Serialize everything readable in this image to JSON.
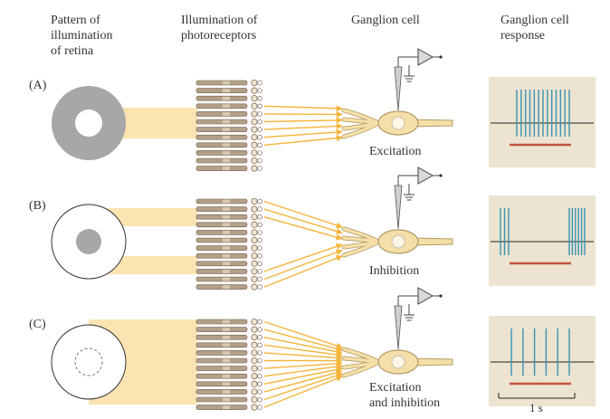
{
  "headers": {
    "pattern": "Pattern of\nillumination\nof retina",
    "illumination": "Illumination of\nphotoreceptors",
    "ganglion": "Ganglion cell",
    "response": "Ganglion cell\nresponse"
  },
  "panels": [
    {
      "label": "(A)",
      "caption": "Excitation",
      "illuminated_region": "center",
      "spikes_during": 13,
      "spikes_outside_before": 0,
      "spikes_outside_after": 0
    },
    {
      "label": "(B)",
      "caption": "Inhibition",
      "illuminated_region": "surround",
      "spikes_during": 0,
      "spikes_outside_before": 3,
      "spikes_outside_after": 6
    },
    {
      "label": "(C)",
      "caption": "Excitation\nand inhibition",
      "illuminated_region": "center and surround",
      "spikes_during": 6,
      "spikes_outside_before": 0,
      "spikes_outside_after": 0
    }
  ],
  "scale_bar": "1 s",
  "colors": {
    "retina_gray": "#a7a7a7",
    "light": "#fbe4b2",
    "arrow": "#f4b43a",
    "response_bg": "#ece4d0",
    "spike": "#3a93b4",
    "stimulus_bar": "#c2553d",
    "neuron": "#f4dfa8",
    "photoreceptor": "#b4a089",
    "electrode": "#888888"
  }
}
